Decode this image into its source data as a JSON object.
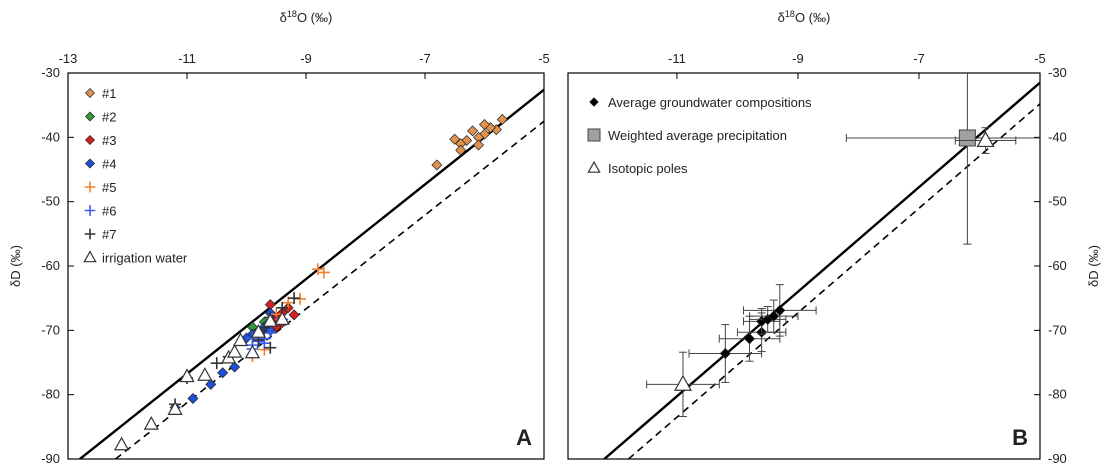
{
  "chart_data": [
    {
      "panel": "A",
      "type": "scatter",
      "title": "",
      "xlabel_parts": [
        "δ",
        "18",
        "O (‰)"
      ],
      "ylabel": "δD (‰)",
      "xlim": [
        -13,
        -5
      ],
      "ylim": [
        -90,
        -30
      ],
      "xticks": [
        "-13",
        "-11",
        "-9",
        "-7",
        "-5"
      ],
      "yticks": [
        "-30",
        "-40",
        "-50",
        "-60",
        "-70",
        "-80",
        "-90"
      ],
      "x_axis_position": "top",
      "y_axis_position": "left",
      "grid": false,
      "legend_position": "top-left",
      "colors": {
        "s1": "#e0924f",
        "s2": "#2e9a3a",
        "s3": "#d42020",
        "s4": "#1f4fd6",
        "s5": "#f08030",
        "s6": "#3a5df0",
        "s7": "#333333",
        "irrigation": "#ffffff",
        "lines": "#000000"
      },
      "lines": [
        {
          "style": "solid",
          "points": [
            [
              -12.8,
              -90
            ],
            [
              -5,
              -32.6
            ]
          ]
        },
        {
          "style": "dashed",
          "points": [
            [
              -12.2,
              -90
            ],
            [
              -5,
              -37.5
            ]
          ]
        }
      ],
      "series": [
        {
          "name": "#1",
          "marker": "diamond",
          "color_key": "s1",
          "points": [
            [
              -5.7,
              -37.2
            ],
            [
              -5.8,
              -38.8
            ],
            [
              -5.9,
              -38.5
            ],
            [
              -6.0,
              -38.0
            ],
            [
              -6.0,
              -39.5
            ],
            [
              -6.1,
              -40.0
            ],
            [
              -6.2,
              -39.0
            ],
            [
              -6.1,
              -41.2
            ],
            [
              -6.3,
              -40.5
            ],
            [
              -6.4,
              -41.0
            ],
            [
              -6.5,
              -40.3
            ],
            [
              -6.4,
              -42.0
            ],
            [
              -6.8,
              -44.3
            ]
          ]
        },
        {
          "name": "#2",
          "marker": "diamond",
          "color_key": "s2",
          "points": [
            [
              -9.9,
              -69.5
            ],
            [
              -9.7,
              -68.7
            ]
          ]
        },
        {
          "name": "#3",
          "marker": "diamond",
          "color_key": "s3",
          "points": [
            [
              -9.6,
              -66.0
            ],
            [
              -9.4,
              -67.3
            ],
            [
              -9.3,
              -66.5
            ],
            [
              -9.5,
              -68.0
            ],
            [
              -9.6,
              -68.6
            ],
            [
              -9.5,
              -69.5
            ],
            [
              -9.7,
              -69.8
            ],
            [
              -9.2,
              -67.6
            ],
            [
              -9.4,
              -68.8
            ]
          ]
        },
        {
          "name": "#4",
          "marker": "diamond",
          "color_key": "s4",
          "points": [
            [
              -9.6,
              -67.3
            ],
            [
              -9.7,
              -69.5
            ],
            [
              -9.8,
              -70.1
            ],
            [
              -9.9,
              -70.6
            ],
            [
              -10.0,
              -71.2
            ],
            [
              -10.2,
              -75.7
            ],
            [
              -10.4,
              -76.6
            ],
            [
              -10.6,
              -78.4
            ],
            [
              -10.9,
              -80.6
            ],
            [
              -11.2,
              -82.0
            ],
            [
              -9.6,
              -70.0
            ]
          ]
        },
        {
          "name": "#5",
          "marker": "plus",
          "color_key": "s5",
          "points": [
            [
              -8.8,
              -60.5
            ],
            [
              -8.7,
              -61.0
            ],
            [
              -9.1,
              -65.1
            ],
            [
              -9.3,
              -65.7
            ],
            [
              -9.9,
              -74.0
            ],
            [
              -9.7,
              -73.0
            ],
            [
              -9.5,
              -67.5
            ]
          ]
        },
        {
          "name": "#6",
          "marker": "plus",
          "color_key": "s6",
          "points": [
            [
              -9.8,
              -70.7
            ],
            [
              -9.9,
              -71.2
            ],
            [
              -9.8,
              -71.7
            ],
            [
              -9.9,
              -72.3
            ],
            [
              -9.7,
              -72.0
            ],
            [
              -9.9,
              -72.9
            ],
            [
              -9.6,
              -70.4
            ],
            [
              -9.4,
              -68.3
            ],
            [
              -9.7,
              -71.3
            ]
          ]
        },
        {
          "name": "#7",
          "marker": "plus",
          "color_key": "s7",
          "points": [
            [
              -9.2,
              -65.0
            ],
            [
              -9.4,
              -66.5
            ],
            [
              -9.6,
              -68.0
            ],
            [
              -9.7,
              -69.6
            ],
            [
              -9.8,
              -71.5
            ],
            [
              -9.6,
              -72.7
            ],
            [
              -10.3,
              -74.1
            ],
            [
              -10.5,
              -75.1
            ],
            [
              -11.0,
              -77.4
            ],
            [
              -11.2,
              -81.5
            ]
          ]
        },
        {
          "name": "irrigation water",
          "marker": "triangle",
          "color_key": "irrigation",
          "points": [
            [
              -12.1,
              -87.8
            ],
            [
              -11.6,
              -84.6
            ],
            [
              -11.2,
              -82.3
            ],
            [
              -11.0,
              -77.2
            ],
            [
              -10.7,
              -77.0
            ],
            [
              -10.3,
              -74.3
            ],
            [
              -10.2,
              -73.4
            ],
            [
              -10.1,
              -71.6
            ],
            [
              -9.9,
              -73.5
            ],
            [
              -9.8,
              -70.3
            ],
            [
              -9.6,
              -68.6
            ],
            [
              -9.4,
              -68.3
            ]
          ]
        }
      ],
      "panel_letter": "A"
    },
    {
      "panel": "B",
      "type": "scatter",
      "title": "",
      "xlabel_parts": [
        "δ",
        "18",
        "O (‰)"
      ],
      "ylabel": "δD (‰)",
      "xlim": [
        -12.8,
        -5
      ],
      "ylim": [
        -90,
        -30
      ],
      "xticks": [
        "-11",
        "-9",
        "-7",
        "-5"
      ],
      "xtick_values": [
        -11,
        -9,
        -7,
        -5
      ],
      "yticks": [
        "-30",
        "-40",
        "-50",
        "-60",
        "-70",
        "-80",
        "-90"
      ],
      "x_axis_position": "top",
      "y_axis_position": "right",
      "grid": false,
      "legend_position": "top-left",
      "colors": {
        "groundwater": "#000000",
        "precipitation": "#a0a0a0",
        "poles": "#ffffff",
        "lines": "#000000"
      },
      "lines": [
        {
          "style": "solid",
          "points": [
            [
              -12.2,
              -90
            ],
            [
              -5,
              -31.5
            ]
          ]
        },
        {
          "style": "dashed",
          "points": [
            [
              -11.8,
              -90
            ],
            [
              -5,
              -34.8
            ]
          ]
        }
      ],
      "series": [
        {
          "name": "Average groundwater compositions",
          "marker": "diamond",
          "color_key": "groundwater",
          "points": [
            {
              "x": -10.2,
              "y": -73.6,
              "xerr": 0.6,
              "yerr": 4.5
            },
            {
              "x": -9.8,
              "y": -71.3,
              "xerr": 0.5,
              "yerr": 3.5
            },
            {
              "x": -9.6,
              "y": -70.3,
              "xerr": 0.4,
              "yerr": 3.0
            },
            {
              "x": -9.6,
              "y": -68.6,
              "xerr": 0.3,
              "yerr": 2.0
            },
            {
              "x": -9.5,
              "y": -68.3,
              "xerr": 0.3,
              "yerr": 2.0
            },
            {
              "x": -9.4,
              "y": -67.8,
              "xerr": 0.4,
              "yerr": 2.5
            },
            {
              "x": -9.3,
              "y": -66.9,
              "xerr": 0.6,
              "yerr": 4.0
            }
          ]
        },
        {
          "name": "Weighted average precipitation",
          "marker": "square",
          "color_key": "precipitation",
          "points": [
            {
              "x": -6.2,
              "y": -40.1,
              "xerr": 2.0,
              "yerr": 16.5
            }
          ]
        },
        {
          "name": "Isotopic poles",
          "marker": "triangle",
          "color_key": "poles",
          "points": [
            {
              "x": -10.9,
              "y": -78.4,
              "xerr": 0.6,
              "yerr": 5.0
            },
            {
              "x": -5.9,
              "y": -40.5,
              "xerr": 0.5,
              "yerr": 2.0
            }
          ]
        }
      ],
      "panel_letter": "B"
    }
  ]
}
